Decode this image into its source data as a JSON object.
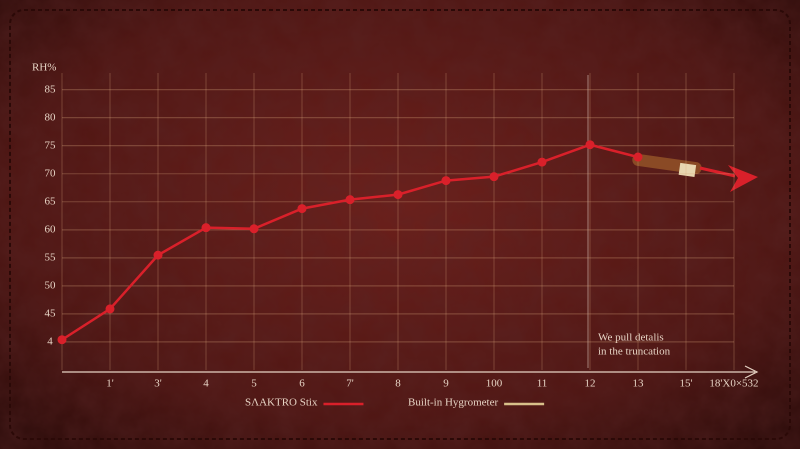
{
  "chart_data": {
    "type": "line",
    "y_label": "RH%",
    "categories": [
      null,
      "1'",
      "3'",
      "4",
      "5",
      "6",
      "7'",
      "8",
      "9",
      "100",
      "11",
      "12",
      "13",
      "15'",
      "18'X0×532"
    ],
    "series": [
      {
        "name": "SΛAKTRO Stix",
        "color": "#d9202a",
        "values": [
          40.4,
          45.9,
          55.5,
          60.4,
          60.2,
          63.8,
          65.4,
          66.3,
          68.8,
          69.5,
          72.1,
          75.2,
          73,
          null,
          null
        ]
      }
    ],
    "legend": [
      {
        "label": "SΛAKTRO Stix",
        "color": "#d9202a"
      },
      {
        "label": "Built-in Hygrometer",
        "color": "#d8c08a"
      }
    ],
    "ylim": [
      35,
      88
    ],
    "yticks": [
      85,
      80,
      75,
      70,
      65,
      60,
      55,
      50,
      45,
      {
        "value": 40,
        "label": "4"
      }
    ],
    "grid": true,
    "annotation": [
      "We pull detalis",
      "in the truncation"
    ]
  }
}
